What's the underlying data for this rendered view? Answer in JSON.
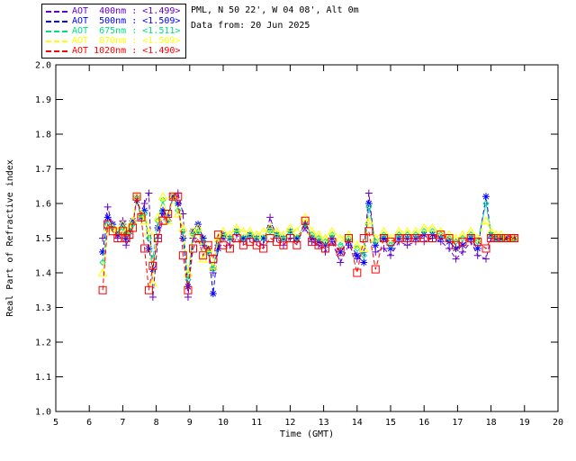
{
  "header": {
    "station_line": "PML, N 50 22', W 04 08', Alt 0m",
    "date_line": "Data from: 20 Jun 2025"
  },
  "legend": {
    "separator": " : ",
    "entries": [
      {
        "label": "AOT  400nm",
        "value": "<1.499>",
        "color": "#6600cc",
        "marker": "plus"
      },
      {
        "label": "AOT  500nm",
        "value": "<1.509>",
        "color": "#0000ff",
        "marker": "asterisk"
      },
      {
        "label": "AOT  675nm",
        "value": "<1.511>",
        "color": "#00e080",
        "marker": "diamond"
      },
      {
        "label": "AOT  870nm",
        "value": "<1.509>",
        "color": "#ffff00",
        "marker": "triangle"
      },
      {
        "label": "AOT 1020nm",
        "value": "<1.490>",
        "color": "#ff0000",
        "marker": "square"
      }
    ]
  },
  "colors": {
    "axis": "#000000",
    "background": "#ffffff"
  },
  "chart_data": {
    "type": "line",
    "title": "",
    "xlabel": "Time (GMT)",
    "ylabel": "Real Part of Refractive index",
    "xlim": [
      5,
      20
    ],
    "ylim": [
      1.0,
      2.0
    ],
    "grid": false,
    "legend_position": "top-left-outside",
    "x_ticks": [
      5,
      6,
      7,
      8,
      9,
      10,
      11,
      12,
      13,
      14,
      15,
      16,
      17,
      18,
      19,
      20
    ],
    "x_tick_labels": [
      "5",
      "6",
      "7",
      "8",
      "9",
      "10",
      "11",
      "12",
      "13",
      "14",
      "15",
      "16",
      "17",
      "18",
      "19",
      "20"
    ],
    "y_ticks": [
      1.0,
      1.1,
      1.2,
      1.3,
      1.4,
      1.5,
      1.6,
      1.7,
      1.8,
      1.9,
      2.0
    ],
    "y_tick_labels": [
      "1.0",
      "1.1",
      "1.2",
      "1.3",
      "1.4",
      "1.5",
      "1.6",
      "1.7",
      "1.8",
      "1.9",
      "2.0"
    ],
    "x": [
      6.4,
      6.55,
      6.7,
      6.85,
      7.0,
      7.1,
      7.2,
      7.3,
      7.42,
      7.55,
      7.65,
      7.78,
      7.9,
      8.05,
      8.2,
      8.35,
      8.5,
      8.65,
      8.8,
      8.95,
      9.1,
      9.25,
      9.4,
      9.55,
      9.7,
      9.85,
      10.0,
      10.2,
      10.4,
      10.6,
      10.8,
      11.0,
      11.2,
      11.4,
      11.6,
      11.8,
      12.0,
      12.2,
      12.45,
      12.65,
      12.85,
      13.05,
      13.25,
      13.5,
      13.75,
      14.0,
      14.2,
      14.35,
      14.55,
      14.8,
      15.0,
      15.25,
      15.5,
      15.75,
      16.0,
      16.25,
      16.5,
      16.75,
      16.95,
      17.15,
      17.4,
      17.6,
      17.85,
      18.0,
      18.15,
      18.3,
      18.45,
      18.6,
      18.7
    ],
    "series": [
      {
        "name": "AOT 400nm",
        "wavelength_nm": 400,
        "mean_display": "<1.499>",
        "color": "#6600cc",
        "marker": "plus",
        "values": [
          1.5,
          1.59,
          1.53,
          1.5,
          1.55,
          1.48,
          1.5,
          1.54,
          1.62,
          1.57,
          1.6,
          1.63,
          1.33,
          1.5,
          1.57,
          1.55,
          1.62,
          1.63,
          1.57,
          1.33,
          1.5,
          1.52,
          1.48,
          1.46,
          1.4,
          1.48,
          1.5,
          1.48,
          1.51,
          1.49,
          1.5,
          1.49,
          1.48,
          1.56,
          1.5,
          1.48,
          1.5,
          1.49,
          1.53,
          1.49,
          1.48,
          1.46,
          1.49,
          1.43,
          1.48,
          1.44,
          1.46,
          1.63,
          1.46,
          1.47,
          1.45,
          1.49,
          1.48,
          1.49,
          1.49,
          1.5,
          1.49,
          1.47,
          1.44,
          1.46,
          1.49,
          1.45,
          1.44,
          1.5,
          1.5,
          1.5,
          1.5,
          1.5,
          1.5
        ]
      },
      {
        "name": "AOT 500nm",
        "wavelength_nm": 500,
        "mean_display": "<1.509>",
        "color": "#0000ff",
        "marker": "asterisk",
        "values": [
          1.46,
          1.56,
          1.54,
          1.51,
          1.54,
          1.5,
          1.52,
          1.55,
          1.61,
          1.56,
          1.58,
          1.47,
          1.41,
          1.53,
          1.58,
          1.56,
          1.62,
          1.6,
          1.5,
          1.36,
          1.52,
          1.54,
          1.5,
          1.47,
          1.34,
          1.47,
          1.51,
          1.5,
          1.52,
          1.5,
          1.51,
          1.5,
          1.5,
          1.53,
          1.51,
          1.5,
          1.52,
          1.5,
          1.54,
          1.5,
          1.49,
          1.48,
          1.5,
          1.46,
          1.49,
          1.45,
          1.43,
          1.6,
          1.48,
          1.5,
          1.47,
          1.5,
          1.5,
          1.5,
          1.51,
          1.51,
          1.5,
          1.49,
          1.47,
          1.48,
          1.5,
          1.47,
          1.62,
          1.51,
          1.5,
          1.5,
          1.5,
          1.5,
          1.5
        ]
      },
      {
        "name": "AOT 675nm",
        "wavelength_nm": 675,
        "mean_display": "<1.511>",
        "color": "#00e080",
        "marker": "diamond",
        "values": [
          1.43,
          1.54,
          1.53,
          1.52,
          1.53,
          1.51,
          1.52,
          1.54,
          1.62,
          1.56,
          1.57,
          1.5,
          1.44,
          1.55,
          1.61,
          1.55,
          1.62,
          1.58,
          1.52,
          1.38,
          1.51,
          1.52,
          1.49,
          1.46,
          1.41,
          1.49,
          1.51,
          1.5,
          1.52,
          1.5,
          1.51,
          1.5,
          1.5,
          1.52,
          1.51,
          1.5,
          1.52,
          1.5,
          1.54,
          1.51,
          1.5,
          1.49,
          1.51,
          1.48,
          1.5,
          1.47,
          1.45,
          1.59,
          1.49,
          1.51,
          1.48,
          1.51,
          1.51,
          1.51,
          1.52,
          1.52,
          1.51,
          1.5,
          1.49,
          1.5,
          1.51,
          1.49,
          1.6,
          1.51,
          1.5,
          1.5,
          1.5,
          1.5,
          1.5
        ]
      },
      {
        "name": "AOT 870nm",
        "wavelength_nm": 870,
        "mean_display": "<1.509>",
        "color": "#ffff00",
        "marker": "triangle",
        "values": [
          1.4,
          1.53,
          1.53,
          1.52,
          1.54,
          1.52,
          1.53,
          1.55,
          1.62,
          1.57,
          1.55,
          1.52,
          1.37,
          1.56,
          1.62,
          1.55,
          1.62,
          1.57,
          1.53,
          1.4,
          1.52,
          1.53,
          1.44,
          1.47,
          1.42,
          1.5,
          1.52,
          1.51,
          1.53,
          1.52,
          1.52,
          1.51,
          1.52,
          1.53,
          1.52,
          1.51,
          1.53,
          1.52,
          1.56,
          1.52,
          1.51,
          1.5,
          1.52,
          1.5,
          1.51,
          1.48,
          1.47,
          1.55,
          1.5,
          1.52,
          1.5,
          1.52,
          1.52,
          1.52,
          1.53,
          1.53,
          1.52,
          1.51,
          1.5,
          1.51,
          1.52,
          1.5,
          1.55,
          1.52,
          1.51,
          1.51,
          1.5,
          1.5,
          1.5
        ]
      },
      {
        "name": "AOT 1020nm",
        "wavelength_nm": 1020,
        "mean_display": "<1.490>",
        "color": "#ff0000",
        "marker": "square",
        "values": [
          1.35,
          1.54,
          1.52,
          1.5,
          1.52,
          1.5,
          1.51,
          1.53,
          1.62,
          1.56,
          1.47,
          1.35,
          1.42,
          1.5,
          1.55,
          1.57,
          1.62,
          1.62,
          1.45,
          1.35,
          1.47,
          1.5,
          1.45,
          1.48,
          1.44,
          1.51,
          1.48,
          1.47,
          1.5,
          1.48,
          1.49,
          1.48,
          1.47,
          1.5,
          1.49,
          1.48,
          1.5,
          1.48,
          1.55,
          1.49,
          1.48,
          1.47,
          1.49,
          1.46,
          1.5,
          1.4,
          1.5,
          1.52,
          1.41,
          1.5,
          1.49,
          1.5,
          1.5,
          1.5,
          1.5,
          1.5,
          1.51,
          1.5,
          1.48,
          1.49,
          1.5,
          1.49,
          1.47,
          1.5,
          1.5,
          1.5,
          1.5,
          1.5,
          1.5
        ]
      }
    ]
  }
}
